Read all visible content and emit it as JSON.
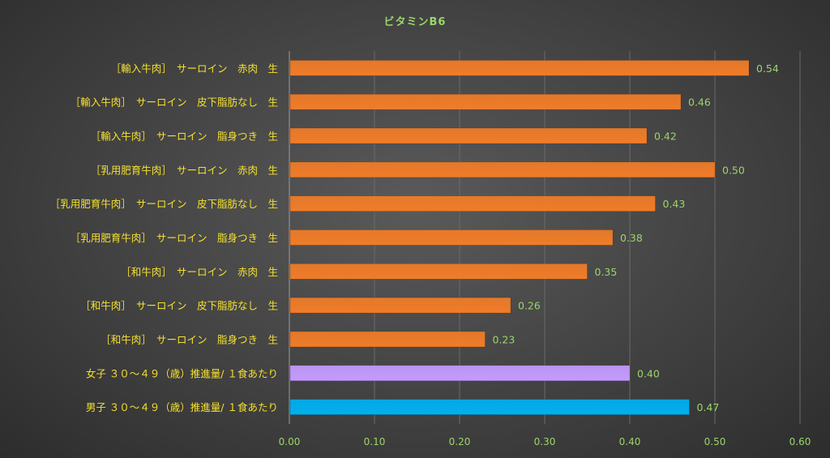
{
  "chart_data": {
    "type": "bar",
    "orientation": "horizontal",
    "title": "ビタミンB6",
    "xlabel": "",
    "ylabel": "",
    "xlim": [
      0,
      0.6
    ],
    "x_ticks": [
      "0.00",
      "0.10",
      "0.20",
      "0.30",
      "0.40",
      "0.50",
      "0.60"
    ],
    "grid": "vertical",
    "legend": "none",
    "value_format": "2 decimals",
    "categories": [
      "［輸入牛肉］　サーロイン　赤肉　生",
      "［輸入牛肉］　サーロイン　皮下脂肪なし　生",
      "［輸入牛肉］　サーロイン　脂身つき　生",
      "［乳用肥育牛肉］　サーロイン　赤肉　生",
      "［乳用肥育牛肉］　サーロイン　皮下脂肪なし　生",
      "［乳用肥育牛肉］　サーロイン　脂身つき　生",
      "［和牛肉］　サーロイン　赤肉　生",
      "［和牛肉］　サーロイン　皮下脂肪なし　生",
      "［和牛肉］　サーロイン　脂身つき　生",
      "女子 ３０～４９（歳）推進量/ １食あたり",
      "男子 ３０～４９（歳）推進量/ １食あたり"
    ],
    "values": [
      0.54,
      0.46,
      0.42,
      0.5,
      0.43,
      0.38,
      0.35,
      0.26,
      0.23,
      0.4,
      0.47
    ],
    "bar_colors": [
      "#f07c28",
      "#f07c28",
      "#f07c28",
      "#f07c28",
      "#f07c28",
      "#f07c28",
      "#f07c28",
      "#f07c28",
      "#f07c28",
      "#c49bff",
      "#00b0f0"
    ],
    "colors": {
      "title": "#9bd56a",
      "category_label": "#f5e030",
      "tick_label": "#9bd56a",
      "value_label": "#9bd56a",
      "gridline": "#6a6a6a"
    }
  }
}
